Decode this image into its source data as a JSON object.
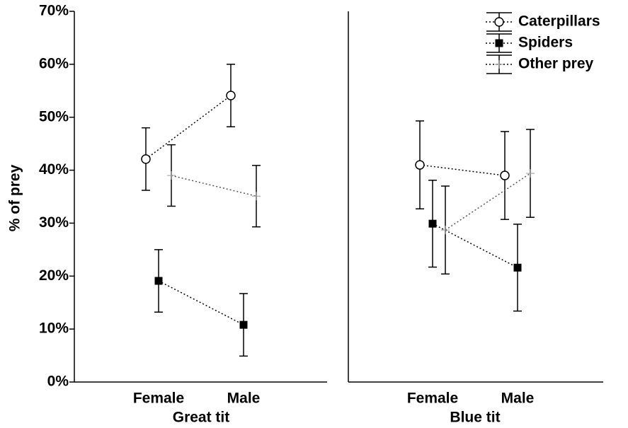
{
  "chart_data": [
    {
      "type": "line",
      "ylabel": "% of prey",
      "xlabel": "Great tit",
      "categories": [
        "Female",
        "Male"
      ],
      "ylim": [
        0,
        70
      ],
      "yticks": [
        {
          "value": 0,
          "label": "0%"
        },
        {
          "value": 10,
          "label": "10%"
        },
        {
          "value": 20,
          "label": "20%"
        },
        {
          "value": 30,
          "label": "30%"
        },
        {
          "value": 40,
          "label": "40%"
        },
        {
          "value": 50,
          "label": "50%"
        },
        {
          "value": 60,
          "label": "60%"
        },
        {
          "value": 70,
          "label": "70%"
        }
      ],
      "series": [
        {
          "marker": "open-circle",
          "values": [
            42.1,
            54.1
          ],
          "errors": [
            5.9,
            5.9
          ]
        },
        {
          "marker": "filled-square",
          "values": [
            19.1,
            10.8
          ],
          "errors": [
            5.9,
            5.9
          ]
        },
        {
          "marker": "cross",
          "values": [
            39.0,
            35.1
          ],
          "errors": [
            5.8,
            5.8
          ]
        }
      ]
    },
    {
      "type": "line",
      "xlabel": "Blue tit",
      "categories": [
        "Female",
        "Male"
      ],
      "ylim": [
        0,
        70
      ],
      "legend": "upper right",
      "series": [
        {
          "name": "Caterpillars",
          "marker": "open-circle",
          "values": [
            41.0,
            39.0
          ],
          "errors": [
            8.3,
            8.3
          ]
        },
        {
          "name": "Spiders",
          "marker": "filled-square",
          "values": [
            29.9,
            21.6
          ],
          "errors": [
            8.2,
            8.2
          ]
        },
        {
          "name": "Other prey",
          "marker": "cross",
          "values": [
            28.7,
            39.4
          ],
          "errors": [
            8.3,
            8.3
          ]
        }
      ]
    }
  ]
}
